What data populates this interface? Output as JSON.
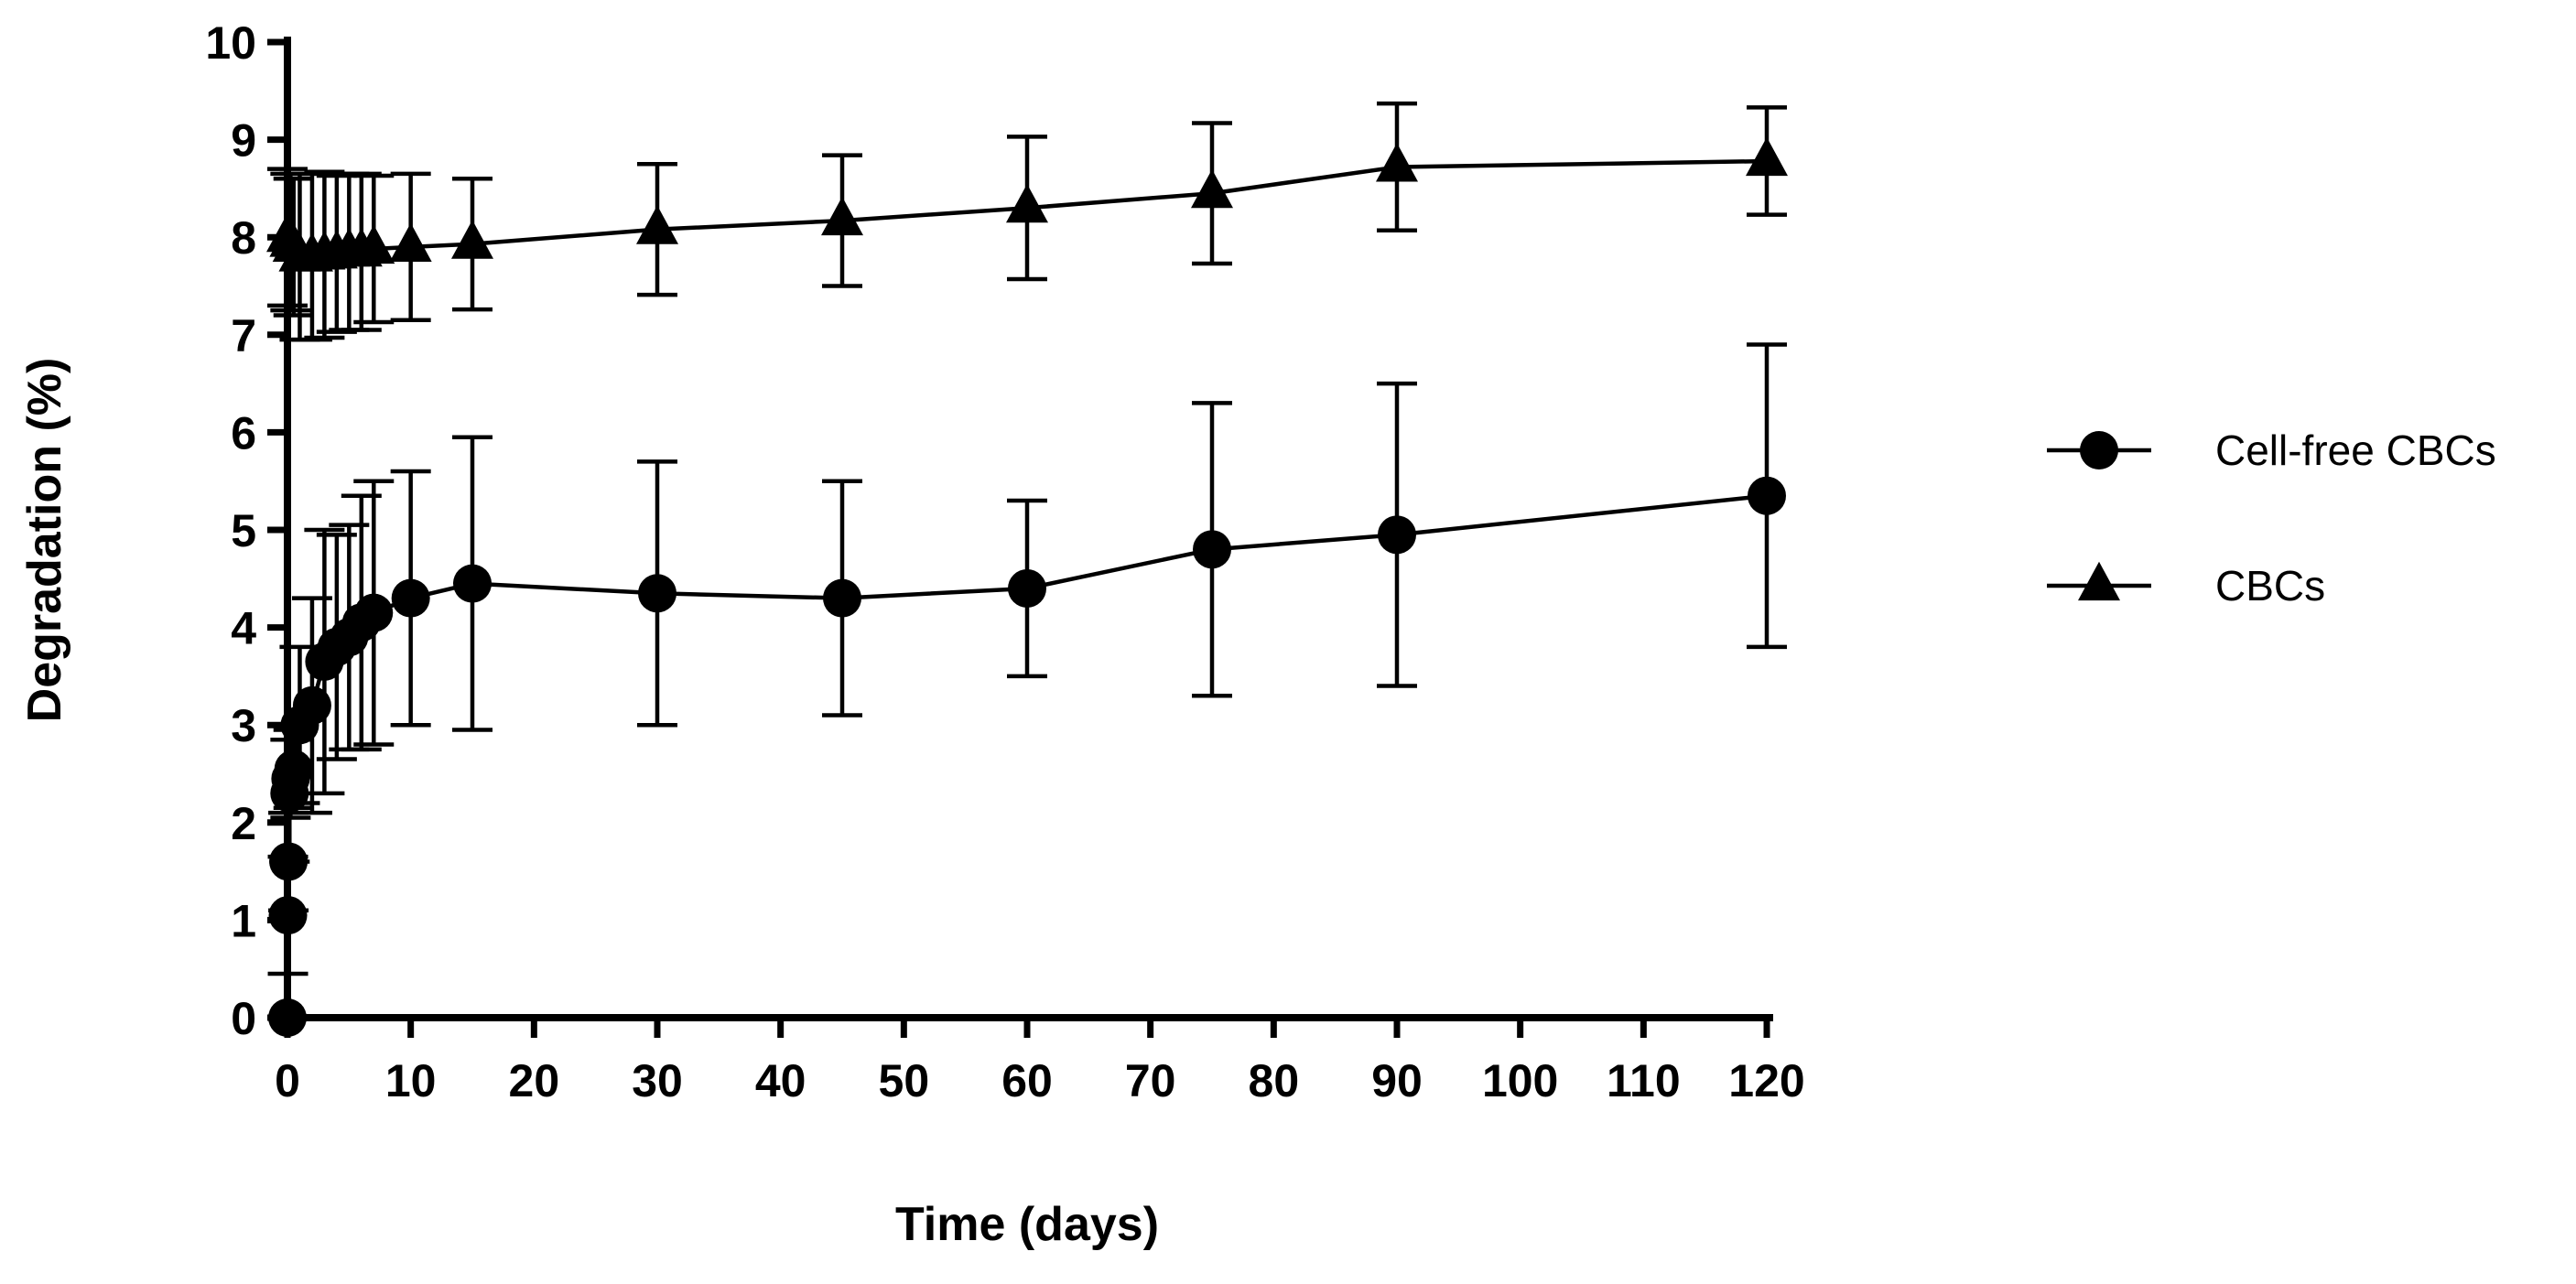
{
  "chart_data": {
    "type": "line",
    "title": "",
    "xlabel": "Time (days)",
    "ylabel": "Degradation (%)",
    "xlim": [
      0,
      120
    ],
    "ylim": [
      0,
      10
    ],
    "x_ticks": [
      0,
      10,
      20,
      30,
      40,
      50,
      60,
      70,
      80,
      90,
      100,
      110,
      120
    ],
    "x_tick_labels": [
      "0",
      "10",
      "20",
      "30",
      "40",
      "50",
      "60",
      "70",
      "80",
      "90",
      "100",
      "110",
      "120"
    ],
    "y_ticks": [
      0,
      1,
      2,
      3,
      4,
      5,
      6,
      7,
      8,
      9,
      10
    ],
    "y_tick_labels": [
      "0",
      "1",
      "2",
      "3",
      "4",
      "5",
      "6",
      "7",
      "8",
      "9",
      "10"
    ],
    "grid": false,
    "legend_position": "right",
    "series": [
      {
        "name": "Cell-free CBCs",
        "marker": "circle",
        "color": "#000000",
        "x": [
          0,
          0.04,
          0.08,
          0.17,
          0.25,
          0.5,
          1,
          2,
          3,
          4,
          5,
          6,
          7,
          10,
          15,
          30,
          45,
          60,
          75,
          90,
          120
        ],
        "y": [
          0,
          1.05,
          1.6,
          2.3,
          2.45,
          2.55,
          3.0,
          3.2,
          3.65,
          3.8,
          3.9,
          4.05,
          4.15,
          4.3,
          4.45,
          4.35,
          4.3,
          4.4,
          4.8,
          4.95,
          5.35
        ],
        "error": [
          0,
          0.6,
          0.5,
          0.7,
          0.4,
          0.4,
          0.8,
          1.1,
          1.35,
          1.15,
          1.15,
          1.3,
          1.35,
          1.3,
          1.5,
          1.35,
          1.2,
          0.9,
          1.5,
          1.55,
          1.55
        ]
      },
      {
        "name": "CBCs",
        "marker": "triangle",
        "color": "#000000",
        "x": [
          0,
          0.25,
          0.5,
          1,
          2,
          3,
          4,
          5,
          6,
          7,
          10,
          15,
          30,
          45,
          60,
          75,
          90,
          120
        ],
        "y": [
          8.0,
          7.95,
          7.9,
          7.8,
          7.8,
          7.82,
          7.83,
          7.85,
          7.85,
          7.88,
          7.9,
          7.93,
          8.08,
          8.17,
          8.3,
          8.45,
          8.72,
          8.78
        ],
        "error": [
          0.7,
          0.7,
          0.7,
          0.85,
          0.85,
          0.85,
          0.8,
          0.8,
          0.8,
          0.75,
          0.75,
          0.67,
          0.67,
          0.67,
          0.73,
          0.72,
          0.65,
          0.55
        ]
      }
    ]
  }
}
